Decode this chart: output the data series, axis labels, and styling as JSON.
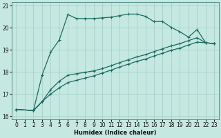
{
  "xlabel": "Humidex (Indice chaleur)",
  "bg_color": "#c5e8e0",
  "grid_color": "#9ecec5",
  "line_color": "#1a6b60",
  "x_values": [
    0,
    1,
    2,
    3,
    4,
    5,
    6,
    7,
    8,
    9,
    10,
    11,
    12,
    13,
    14,
    15,
    16,
    17,
    18,
    19,
    20,
    21,
    22,
    23
  ],
  "curve_main": [
    16.3,
    null,
    16.25,
    17.85,
    18.9,
    19.45,
    20.6,
    20.42,
    20.42,
    20.42,
    20.45,
    20.48,
    20.55,
    20.62,
    20.62,
    20.52,
    20.28,
    20.28,
    20.02,
    19.82,
    19.58,
    19.92,
    19.32,
    19.28
  ],
  "curve_mid1": [
    16.3,
    null,
    16.25,
    16.65,
    17.2,
    17.58,
    17.85,
    17.92,
    17.98,
    18.05,
    18.15,
    18.28,
    18.42,
    18.55,
    18.68,
    18.78,
    18.92,
    19.05,
    19.18,
    19.28,
    19.42,
    19.55,
    19.32,
    19.28
  ],
  "curve_mid2": [
    16.3,
    null,
    16.25,
    16.65,
    17.0,
    17.28,
    17.52,
    17.62,
    17.72,
    17.82,
    17.95,
    18.08,
    18.22,
    18.35,
    18.48,
    18.58,
    18.72,
    18.85,
    18.98,
    19.08,
    19.22,
    19.35,
    19.32,
    19.28
  ],
  "curve_low": [
    null,
    null,
    null,
    null,
    null,
    null,
    null,
    null,
    null,
    null,
    null,
    null,
    null,
    null,
    null,
    null,
    null,
    null,
    null,
    null,
    null,
    null,
    null,
    null
  ],
  "ylim": [
    15.85,
    21.15
  ],
  "xlim": [
    -0.5,
    23.5
  ],
  "yticks": [
    16,
    17,
    18,
    19,
    20,
    21
  ],
  "xticks": [
    0,
    1,
    2,
    3,
    4,
    5,
    6,
    7,
    8,
    9,
    10,
    11,
    12,
    13,
    14,
    15,
    16,
    17,
    18,
    19,
    20,
    21,
    22,
    23
  ],
  "tick_fontsize": 5.5,
  "xlabel_fontsize": 6.0
}
